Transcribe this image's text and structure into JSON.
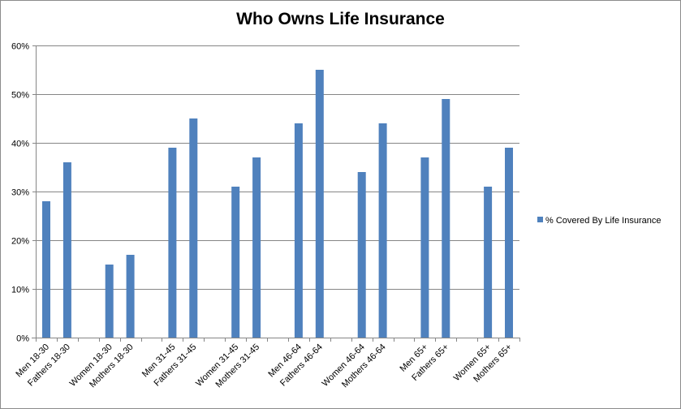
{
  "chart_data": {
    "type": "bar",
    "title": "Who Owns Life Insurance",
    "xlabel": "",
    "ylabel": "",
    "ylim": [
      0,
      0.6
    ],
    "yticks": [
      "0%",
      "10%",
      "20%",
      "30%",
      "40%",
      "50%",
      "60%"
    ],
    "grid": true,
    "legend_position": "right",
    "categories": [
      "Men 18-30",
      "Fathers 18-30",
      "",
      "Women 18-30",
      "Mothers 18-30",
      "",
      "Men 31-45",
      "Fathers 31-45",
      "",
      "Women 31-45",
      "Mothers 31-45",
      "",
      "Men 46-64",
      "Fathers 46-64",
      "",
      "Women 46-64",
      "Mothers 46-64",
      "",
      "Men 65+",
      "Fathers 65+",
      "",
      "Women 65+",
      "Mothers 65+"
    ],
    "series": [
      {
        "name": "% Covered By Life Insurance",
        "color": "#4f81bd",
        "values": [
          0.28,
          0.36,
          null,
          0.15,
          0.17,
          null,
          0.39,
          0.45,
          null,
          0.31,
          0.37,
          null,
          0.44,
          0.55,
          null,
          0.34,
          0.44,
          null,
          0.37,
          0.49,
          null,
          0.31,
          0.39
        ]
      }
    ]
  }
}
